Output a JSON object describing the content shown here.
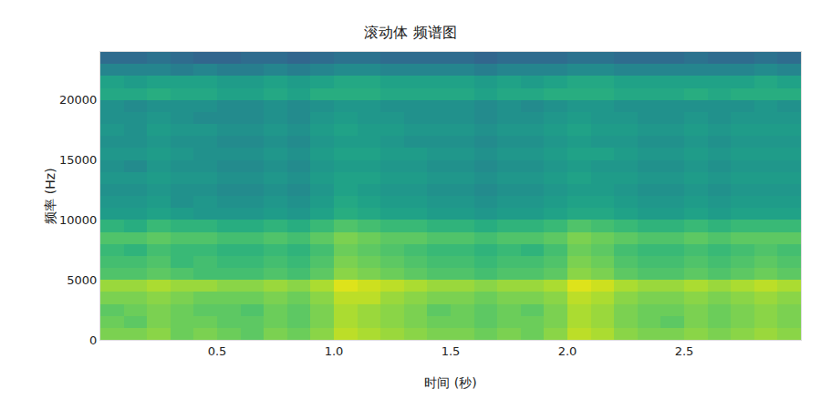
{
  "chart_data": {
    "type": "heatmap",
    "title": "滚动体 频谱图",
    "x_label": "时间 (秒)",
    "y_label": "频率 (Hz)",
    "color": "Viridis",
    "grid": true,
    "xlim": [
      0,
      3
    ],
    "ylim": [
      0,
      24000
    ],
    "xticks": [
      0.5,
      {
        "value": 1,
        "label": "1.0"
      },
      1.5,
      {
        "value": 2,
        "label": "2.0"
      },
      2.5
    ],
    "yticks": [
      0,
      5000,
      10000,
      15000,
      20000
    ],
    "zlim": [
      -70,
      -30
    ],
    "x": [
      0.05,
      0.15,
      0.25,
      0.35,
      0.45,
      0.55,
      0.65,
      0.75,
      0.85,
      0.95,
      1.05,
      1.15,
      1.25,
      1.35,
      1.45,
      1.55,
      1.65,
      1.75,
      1.85,
      1.95,
      2.05,
      2.15,
      2.25,
      2.35,
      2.45,
      2.55,
      2.65,
      2.75,
      2.85,
      2.95
    ],
    "y": [
      500,
      1500,
      2500,
      3500,
      4500,
      5500,
      6500,
      7500,
      8500,
      9500,
      10500,
      11500,
      12500,
      13500,
      14500,
      15500,
      16500,
      17500,
      18500,
      19500,
      20500,
      21500,
      22500,
      23500
    ],
    "cells": [
      [
        -38,
        -38,
        -37,
        -39,
        -38,
        -39,
        -40,
        -38,
        -39,
        -37,
        -34,
        -35,
        -36,
        -37,
        -38,
        -38,
        -39,
        -38,
        -39,
        -37,
        -34,
        -35,
        -37,
        -38,
        -38,
        -37,
        -38,
        -37,
        -36,
        -37
      ],
      [
        -39,
        -40,
        -38,
        -39,
        -39,
        -40,
        -40,
        -39,
        -40,
        -38,
        -35,
        -36,
        -37,
        -38,
        -39,
        -39,
        -40,
        -39,
        -39,
        -38,
        -35,
        -36,
        -38,
        -39,
        -40,
        -38,
        -39,
        -38,
        -37,
        -38
      ],
      [
        -40,
        -39,
        -38,
        -39,
        -40,
        -40,
        -41,
        -39,
        -40,
        -38,
        -35,
        -36,
        -37,
        -38,
        -40,
        -39,
        -40,
        -39,
        -40,
        -38,
        -35,
        -36,
        -38,
        -39,
        -39,
        -38,
        -39,
        -38,
        -37,
        -38
      ],
      [
        -38,
        -38,
        -37,
        -38,
        -39,
        -39,
        -39,
        -38,
        -39,
        -37,
        -34,
        -34,
        -36,
        -37,
        -38,
        -38,
        -39,
        -38,
        -38,
        -37,
        -34,
        -35,
        -37,
        -38,
        -38,
        -37,
        -38,
        -37,
        -36,
        -37
      ],
      [
        -36,
        -36,
        -35,
        -36,
        -36,
        -37,
        -37,
        -36,
        -37,
        -35,
        -32,
        -33,
        -34,
        -35,
        -36,
        -36,
        -37,
        -36,
        -36,
        -35,
        -32,
        -33,
        -35,
        -36,
        -36,
        -35,
        -36,
        -35,
        -34,
        -35
      ],
      [
        -41,
        -41,
        -40,
        -41,
        -42,
        -42,
        -42,
        -41,
        -42,
        -40,
        -37,
        -38,
        -39,
        -40,
        -41,
        -41,
        -42,
        -41,
        -41,
        -40,
        -37,
        -38,
        -40,
        -41,
        -41,
        -40,
        -41,
        -40,
        -39,
        -40
      ],
      [
        -42,
        -42,
        -41,
        -43,
        -42,
        -43,
        -43,
        -42,
        -43,
        -41,
        -38,
        -39,
        -40,
        -41,
        -42,
        -42,
        -43,
        -42,
        -42,
        -41,
        -38,
        -39,
        -41,
        -42,
        -42,
        -41,
        -42,
        -41,
        -40,
        -41
      ],
      [
        -43,
        -44,
        -42,
        -43,
        -43,
        -44,
        -44,
        -43,
        -44,
        -42,
        -39,
        -40,
        -41,
        -42,
        -43,
        -43,
        -44,
        -43,
        -44,
        -42,
        -39,
        -40,
        -42,
        -43,
        -43,
        -42,
        -43,
        -42,
        -41,
        -42
      ],
      [
        -41,
        -41,
        -40,
        -41,
        -41,
        -42,
        -42,
        -41,
        -42,
        -40,
        -38,
        -39,
        -40,
        -40,
        -41,
        -41,
        -42,
        -41,
        -41,
        -40,
        -38,
        -39,
        -40,
        -41,
        -41,
        -40,
        -41,
        -40,
        -40,
        -40
      ],
      [
        -44,
        -45,
        -43,
        -44,
        -44,
        -45,
        -45,
        -44,
        -45,
        -43,
        -41,
        -42,
        -43,
        -43,
        -44,
        -44,
        -45,
        -44,
        -44,
        -43,
        -41,
        -42,
        -43,
        -44,
        -44,
        -43,
        -44,
        -43,
        -43,
        -43
      ],
      [
        -48,
        -48,
        -47,
        -48,
        -49,
        -49,
        -49,
        -48,
        -49,
        -47,
        -45,
        -46,
        -47,
        -47,
        -48,
        -48,
        -49,
        -48,
        -48,
        -47,
        -46,
        -46,
        -47,
        -48,
        -48,
        -47,
        -48,
        -47,
        -47,
        -47
      ],
      [
        -49,
        -49,
        -48,
        -50,
        -49,
        -50,
        -50,
        -49,
        -50,
        -48,
        -46,
        -47,
        -48,
        -48,
        -49,
        -49,
        -50,
        -49,
        -49,
        -48,
        -47,
        -47,
        -48,
        -49,
        -49,
        -48,
        -49,
        -48,
        -48,
        -48
      ],
      [
        -50,
        -50,
        -49,
        -50,
        -50,
        -51,
        -51,
        -50,
        -51,
        -49,
        -47,
        -48,
        -49,
        -49,
        -50,
        -50,
        -51,
        -50,
        -50,
        -49,
        -48,
        -48,
        -49,
        -50,
        -50,
        -49,
        -50,
        -49,
        -49,
        -49
      ],
      [
        -49,
        -49,
        -48,
        -49,
        -49,
        -50,
        -50,
        -49,
        -50,
        -48,
        -47,
        -47,
        -48,
        -48,
        -49,
        -49,
        -50,
        -49,
        -49,
        -48,
        -47,
        -48,
        -48,
        -49,
        -49,
        -48,
        -49,
        -48,
        -48,
        -48
      ],
      [
        -50,
        -51,
        -49,
        -50,
        -50,
        -51,
        -51,
        -50,
        -51,
        -49,
        -48,
        -48,
        -49,
        -49,
        -50,
        -50,
        -51,
        -50,
        -50,
        -49,
        -48,
        -49,
        -49,
        -50,
        -50,
        -49,
        -50,
        -49,
        -49,
        -49
      ],
      [
        -49,
        -49,
        -48,
        -49,
        -50,
        -50,
        -50,
        -49,
        -50,
        -48,
        -47,
        -47,
        -48,
        -48,
        -49,
        -49,
        -50,
        -49,
        -49,
        -48,
        -47,
        -47,
        -48,
        -49,
        -49,
        -48,
        -49,
        -48,
        -48,
        -48
      ],
      [
        -50,
        -50,
        -49,
        -50,
        -50,
        -51,
        -51,
        -50,
        -51,
        -49,
        -48,
        -48,
        -49,
        -50,
        -50,
        -50,
        -51,
        -50,
        -50,
        -49,
        -48,
        -49,
        -49,
        -50,
        -50,
        -49,
        -50,
        -49,
        -49,
        -49
      ],
      [
        -49,
        -50,
        -48,
        -49,
        -49,
        -50,
        -50,
        -49,
        -50,
        -48,
        -47,
        -48,
        -48,
        -49,
        -49,
        -49,
        -50,
        -49,
        -49,
        -48,
        -47,
        -48,
        -48,
        -49,
        -49,
        -48,
        -49,
        -48,
        -48,
        -48
      ],
      [
        -50,
        -50,
        -49,
        -50,
        -51,
        -51,
        -51,
        -50,
        -51,
        -49,
        -48,
        -49,
        -49,
        -50,
        -50,
        -50,
        -51,
        -50,
        -50,
        -49,
        -48,
        -49,
        -49,
        -50,
        -50,
        -49,
        -50,
        -49,
        -49,
        -49
      ],
      [
        -50,
        -51,
        -50,
        -50,
        -50,
        -51,
        -51,
        -50,
        -51,
        -50,
        -49,
        -49,
        -50,
        -50,
        -50,
        -50,
        -51,
        -50,
        -51,
        -50,
        -49,
        -49,
        -50,
        -50,
        -50,
        -50,
        -50,
        -50,
        -49,
        -50
      ],
      [
        -46,
        -46,
        -45,
        -46,
        -46,
        -47,
        -47,
        -46,
        -47,
        -45,
        -45,
        -45,
        -46,
        -46,
        -46,
        -46,
        -47,
        -46,
        -46,
        -45,
        -45,
        -45,
        -46,
        -46,
        -46,
        -45,
        -46,
        -45,
        -45,
        -45
      ],
      [
        -47,
        -48,
        -47,
        -47,
        -47,
        -48,
        -48,
        -47,
        -48,
        -47,
        -46,
        -46,
        -47,
        -47,
        -47,
        -47,
        -48,
        -47,
        -48,
        -47,
        -46,
        -46,
        -47,
        -47,
        -47,
        -47,
        -47,
        -47,
        -46,
        -47
      ],
      [
        -52,
        -52,
        -52,
        -53,
        -52,
        -53,
        -53,
        -52,
        -53,
        -52,
        -51,
        -51,
        -52,
        -52,
        -52,
        -52,
        -53,
        -52,
        -52,
        -52,
        -51,
        -51,
        -52,
        -52,
        -52,
        -52,
        -52,
        -52,
        -51,
        -52
      ],
      [
        -56,
        -56,
        -55,
        -56,
        -57,
        -57,
        -56,
        -56,
        -57,
        -56,
        -55,
        -55,
        -56,
        -56,
        -56,
        -56,
        -57,
        -56,
        -56,
        -56,
        -55,
        -55,
        -56,
        -56,
        -56,
        -55,
        -56,
        -56,
        -55,
        -56
      ]
    ]
  }
}
